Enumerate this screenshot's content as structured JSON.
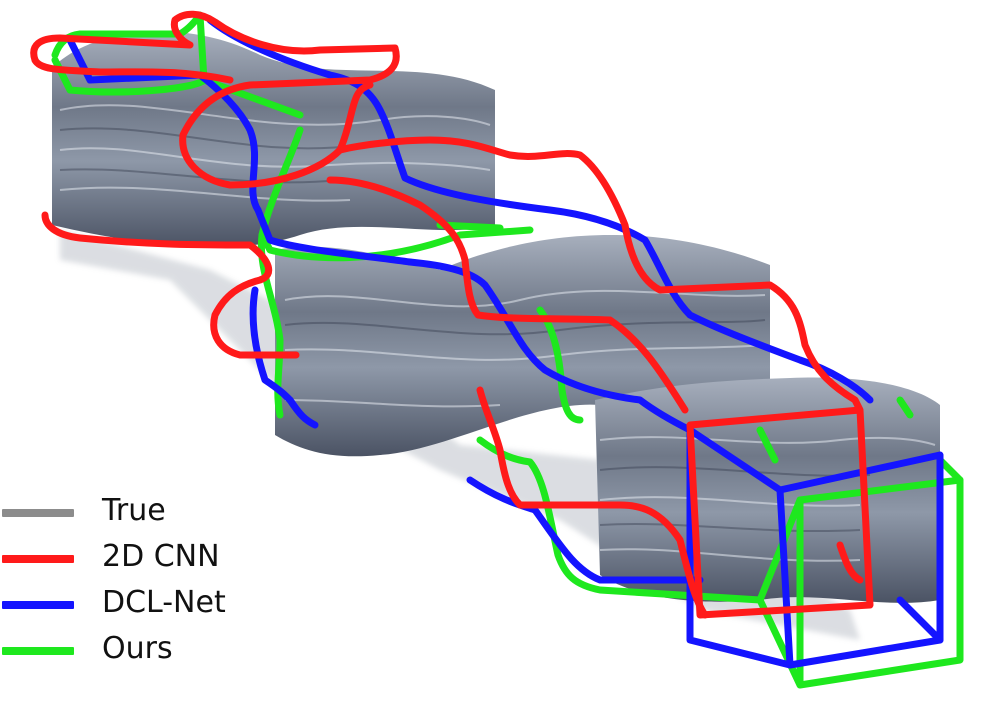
{
  "legend": [
    {
      "label": "True",
      "color": "#8c8c8c"
    },
    {
      "label": "2D CNN",
      "color": "#ff1a1a"
    },
    {
      "label": "DCL-Net",
      "color": "#1414ff"
    },
    {
      "label": "Ours",
      "color": "#1ee81e"
    }
  ],
  "colors": {
    "volume_base": "#6b7280",
    "volume_dark": "#3f4758",
    "volume_light": "#d7dde6"
  }
}
